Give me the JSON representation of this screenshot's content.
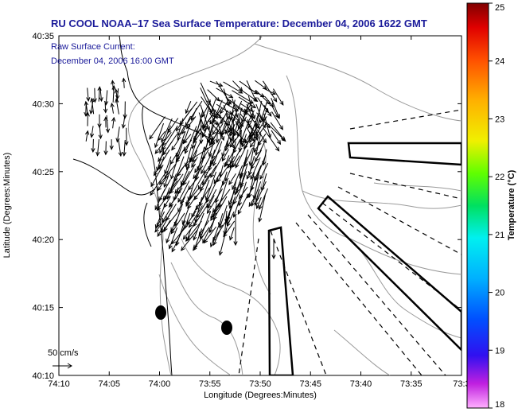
{
  "title": "RU COOL  NOAA–17  Sea Surface Temperature:  December 04, 2006 1622 GMT",
  "current": {
    "label": "Raw Surface Current:",
    "time": "December 04, 2006 16:00 GMT",
    "scale_label": "50 cm/s"
  },
  "axes": {
    "xlabel": "Longitude (Degrees:Minutes)",
    "ylabel": "Latitude (Degrees:Minutes)",
    "x_ticks": [
      "74:10",
      "74:05",
      "74:00",
      "73:55",
      "73:50",
      "73:45",
      "73:40",
      "73:35",
      "73:3"
    ],
    "y_ticks": [
      "40:35",
      "40:30",
      "40:25",
      "40:20",
      "40:15",
      "40:10"
    ]
  },
  "colorbar": {
    "label": "Temperature (°C)",
    "ticks": [
      "25",
      "24",
      "23",
      "22",
      "21",
      "20",
      "19",
      "18"
    ],
    "range": [
      18,
      25
    ]
  },
  "colors": {
    "title": "#1a1a9a",
    "lines": "#000000",
    "contours": "#9a9a9a",
    "background": "#ffffff"
  }
}
